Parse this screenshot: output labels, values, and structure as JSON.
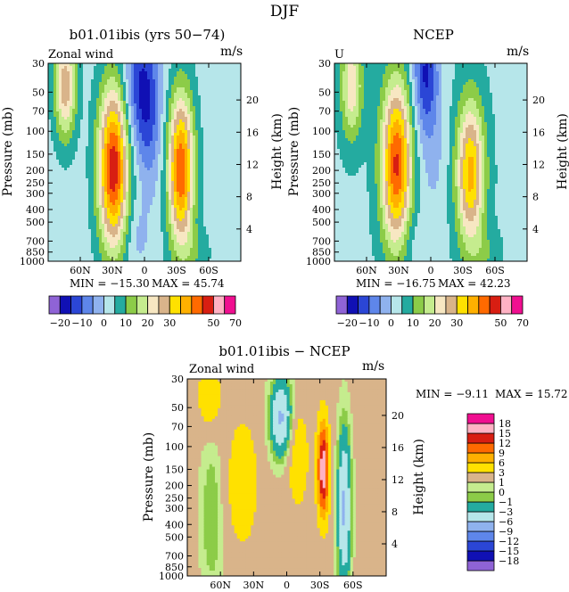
{
  "figure": {
    "title": "DJF",
    "bottom_title": "b01.01ibis − NCEP"
  },
  "colors": {
    "full": [
      "#8f63d6",
      "#1010b4",
      "#2b46d6",
      "#5e86ea",
      "#8fb2ee",
      "#b6e6ea",
      "#24aba0",
      "#8ccc48",
      "#c5ec8e",
      "#f7e7c2",
      "#d9b48a",
      "#ffe100",
      "#ffb000",
      "#ff6a00",
      "#d81e12",
      "#ffb2c4",
      "#f00f90"
    ],
    "diff": [
      "#8f63d6",
      "#1010b4",
      "#2b46d6",
      "#5e86ea",
      "#8fb2ee",
      "#b6e6ea",
      "#24aba0",
      "#8ccc48",
      "#c5ec8e",
      "#d9b48a",
      "#ffe100",
      "#ffb000",
      "#ff6a00",
      "#d81e12",
      "#ffb2c4",
      "#f00f90"
    ]
  },
  "chart_data": [
    {
      "type": "heatmap",
      "title": "b01.01ibis (yrs 50−74)",
      "left_label": "Zonal wind",
      "units_label": "m/s",
      "ylabel": "Pressure (mb)",
      "ylabel_right": "Height (km)",
      "pressure_ticks": [
        "30",
        "50",
        "70",
        "100",
        "150",
        "200",
        "250",
        "300",
        "400",
        "500",
        "700",
        "850",
        "1000"
      ],
      "pressure_values": [
        30,
        50,
        70,
        100,
        150,
        200,
        250,
        300,
        400,
        500,
        700,
        850,
        1000
      ],
      "height_ticks": [
        "20",
        "16",
        "12",
        "8",
        "4"
      ],
      "height_values": [
        20,
        16,
        12,
        8,
        4
      ],
      "lat_ticks": [
        "60N",
        "30N",
        "0",
        "30S",
        "60S"
      ],
      "lat_values": [
        60,
        30,
        0,
        -30,
        -60
      ],
      "min_label": "MIN = −15.30",
      "max_label": "MAX = 45.74",
      "levels": [
        -25,
        -20,
        -15,
        -10,
        -5,
        0,
        5,
        10,
        15,
        20,
        25,
        30,
        35,
        40,
        45,
        50,
        60,
        70
      ],
      "colorbar_labels": [
        "−20",
        "−10",
        "0",
        "10",
        "20",
        "30",
        "50",
        "70"
      ],
      "colorbar_label_values": [
        -20,
        -10,
        0,
        10,
        20,
        30,
        50,
        70
      ],
      "features": [
        {
          "lat": 29,
          "p": 190,
          "amp": 46,
          "wlat": 14,
          "wlogp": 0.62
        },
        {
          "lat": -34,
          "p": 200,
          "amp": 42,
          "wlat": 12,
          "wlogp": 0.58
        },
        {
          "lat": 74,
          "p": 45,
          "amp": 26,
          "wlat": 10,
          "wlogp": 0.4
        },
        {
          "lat": 3,
          "p": 45,
          "amp": -18,
          "wlat": 16,
          "wlogp": 0.5
        },
        {
          "lat": -5,
          "p": 110,
          "amp": -7,
          "wlat": 11,
          "wlogp": 0.5
        },
        {
          "lat": 8,
          "p": 640,
          "amp": -5,
          "wlat": 12,
          "wlogp": 0.25
        },
        {
          "lat": -48,
          "p": 870,
          "amp": 5,
          "wlat": 14,
          "wlogp": 0.2
        }
      ],
      "base": 3
    },
    {
      "type": "heatmap",
      "title": "NCEP",
      "left_label": "U",
      "units_label": "m/s",
      "ylabel": "Pressure (mb)",
      "ylabel_right": "Height (km)",
      "pressure_ticks": [
        "30",
        "50",
        "70",
        "100",
        "150",
        "200",
        "250",
        "300",
        "400",
        "500",
        "700",
        "850",
        "1000"
      ],
      "pressure_values": [
        30,
        50,
        70,
        100,
        150,
        200,
        250,
        300,
        400,
        500,
        700,
        850,
        1000
      ],
      "height_ticks": [
        "20",
        "16",
        "12",
        "8",
        "4"
      ],
      "height_values": [
        20,
        16,
        12,
        8,
        4
      ],
      "lat_ticks": [
        "60N",
        "30N",
        "0",
        "30S",
        "60S"
      ],
      "lat_values": [
        60,
        30,
        0,
        -30,
        -60
      ],
      "min_label": "MIN = −16.75",
      "max_label": "MAX = 42.23",
      "levels": [
        -25,
        -20,
        -15,
        -10,
        -5,
        0,
        5,
        10,
        15,
        20,
        25,
        30,
        35,
        40,
        45,
        50,
        60,
        70
      ],
      "colorbar_labels": [
        "−20",
        "−10",
        "0",
        "10",
        "20",
        "30",
        "50",
        "70"
      ],
      "colorbar_label_values": [
        -20,
        -10,
        0,
        10,
        20,
        30,
        50,
        70
      ],
      "features": [
        {
          "lat": 32,
          "p": 180,
          "amp": 42,
          "wlat": 14,
          "wlogp": 0.62
        },
        {
          "lat": -37,
          "p": 210,
          "amp": 33,
          "wlat": 13,
          "wlogp": 0.55
        },
        {
          "lat": 74,
          "p": 45,
          "amp": 20,
          "wlat": 10,
          "wlogp": 0.4
        },
        {
          "lat": 5,
          "p": 35,
          "amp": -19,
          "wlat": 12,
          "wlogp": 0.45
        },
        {
          "lat": -2,
          "p": 150,
          "amp": -5,
          "wlat": 13,
          "wlogp": 0.55
        },
        {
          "lat": 18,
          "p": 680,
          "amp": -4,
          "wlat": 11,
          "wlogp": 0.25
        },
        {
          "lat": -50,
          "p": 880,
          "amp": 5,
          "wlat": 14,
          "wlogp": 0.2
        }
      ],
      "base": 4
    },
    {
      "type": "heatmap",
      "title": "",
      "left_label": "Zonal wind",
      "units_label": "m/s",
      "ylabel": "Pressure (mb)",
      "ylabel_right": "Height (km)",
      "pressure_ticks": [
        "30",
        "50",
        "70",
        "100",
        "150",
        "200",
        "250",
        "300",
        "400",
        "500",
        "700",
        "850",
        "1000"
      ],
      "pressure_values": [
        30,
        50,
        70,
        100,
        150,
        200,
        250,
        300,
        400,
        500,
        700,
        850,
        1000
      ],
      "height_ticks": [
        "20",
        "16",
        "12",
        "8",
        "4"
      ],
      "height_values": [
        20,
        16,
        12,
        8,
        4
      ],
      "lat_ticks": [
        "60N",
        "30N",
        "0",
        "30S",
        "60S"
      ],
      "lat_values": [
        60,
        30,
        0,
        -30,
        -60
      ],
      "min_label": "MIN = −9.11",
      "max_label": "MAX = 15.72",
      "levels": [
        -21,
        -18,
        -15,
        -12,
        -9,
        -6,
        -3,
        -1,
        0,
        1,
        3,
        6,
        9,
        12,
        15,
        18,
        21
      ],
      "colorbar_labels": [
        "18",
        "15",
        "12",
        "9",
        "6",
        "3",
        "1",
        "0",
        "−1",
        "−3",
        "−6",
        "−9",
        "−12",
        "−15",
        "−18"
      ],
      "colorbar_label_values": [
        18,
        15,
        12,
        9,
        6,
        3,
        1,
        0,
        -1,
        -3,
        -6,
        -9,
        -12,
        -15,
        -18
      ],
      "features": [
        {
          "lat": -33,
          "p": 150,
          "amp": 16,
          "wlat": 5,
          "wlogp": 0.35
        },
        {
          "lat": 5,
          "p": 60,
          "amp": -8,
          "wlat": 10,
          "wlogp": 0.3
        },
        {
          "lat": -52,
          "p": 300,
          "amp": -8,
          "wlat": 6,
          "wlogp": 0.6
        },
        {
          "lat": 68,
          "p": 350,
          "amp": -2.5,
          "wlat": 10,
          "wlogp": 0.6
        },
        {
          "lat": 40,
          "p": 190,
          "amp": 3.5,
          "wlat": 14,
          "wlogp": 0.5
        },
        {
          "lat": -10,
          "p": 120,
          "amp": 3.5,
          "wlat": 10,
          "wlogp": 0.4
        },
        {
          "lat": 70,
          "p": 40,
          "amp": 4,
          "wlat": 10,
          "wlogp": 0.25
        }
      ],
      "base": 1.5
    }
  ]
}
